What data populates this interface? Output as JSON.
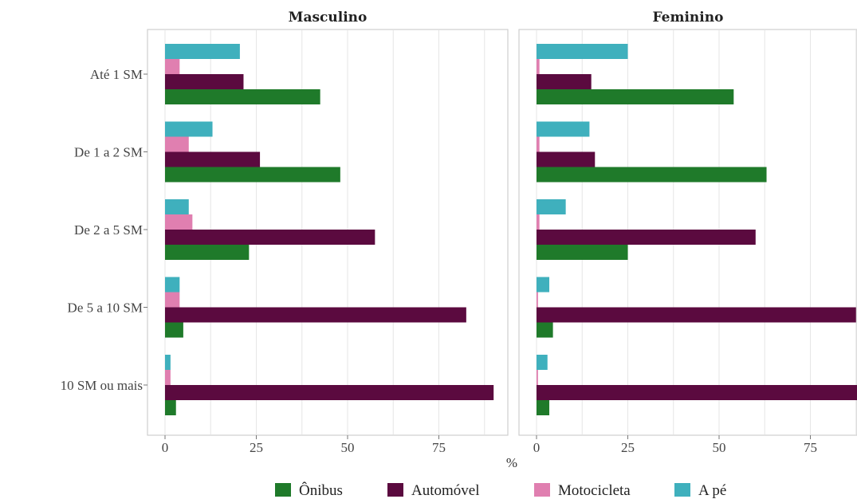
{
  "chart_data": {
    "type": "bar",
    "orientation": "horizontal",
    "xlabel": "%",
    "ylabel": "",
    "xlim": [
      0,
      90
    ],
    "x_ticks": [
      "0",
      "25",
      "50",
      "75"
    ],
    "x_tick_values": [
      0,
      25,
      50,
      75
    ],
    "categories": [
      "Até 1 SM",
      "De 1 a 2 SM",
      "De 2 a 5 SM",
      "De 5 a 10 SM",
      "10 SM ou mais"
    ],
    "series_names": [
      "Ônibus",
      "Automóvel",
      "Motocicleta",
      "A pé"
    ],
    "series_colors": [
      "#1f7a2a",
      "#5b0a3f",
      "#e07fb0",
      "#3fb0bd"
    ],
    "legend_position": "bottom",
    "grid": true,
    "facets": [
      {
        "title": "Masculino",
        "series": [
          {
            "name": "Ônibus",
            "values": [
              42.5,
              48,
              23,
              5,
              3
            ]
          },
          {
            "name": "Automóvel",
            "values": [
              21.5,
              26,
              57.5,
              82.5,
              90
            ]
          },
          {
            "name": "Motocicleta",
            "values": [
              4,
              6.5,
              7.5,
              4,
              1.5
            ]
          },
          {
            "name": "A pé",
            "values": [
              20.5,
              13,
              6.5,
              4,
              1.5
            ]
          }
        ]
      },
      {
        "title": "Feminino",
        "series": [
          {
            "name": "Ônibus",
            "values": [
              54,
              63,
              25,
              4.5,
              3.5
            ]
          },
          {
            "name": "Automóvel",
            "values": [
              15,
              16,
              60,
              87.5,
              90
            ]
          },
          {
            "name": "Motocicleta",
            "values": [
              0.8,
              0.8,
              0.8,
              0.4,
              0.4
            ]
          },
          {
            "name": "A pé",
            "values": [
              25,
              14.5,
              8,
              3.5,
              3
            ]
          }
        ]
      }
    ]
  }
}
